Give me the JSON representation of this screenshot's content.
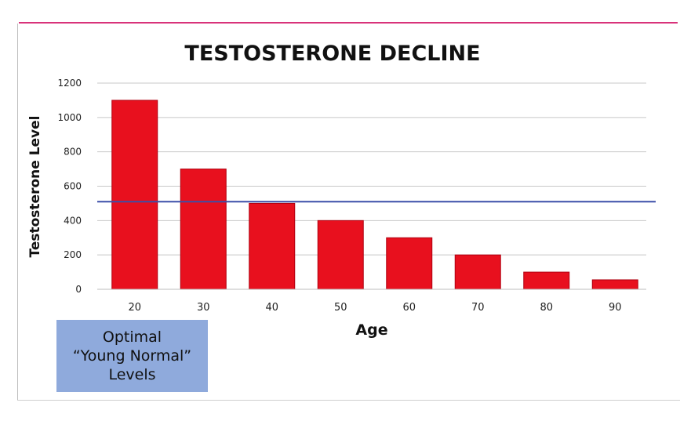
{
  "chart_data": {
    "type": "bar",
    "title": "TESTOSTERONE DECLINE",
    "xlabel": "Age",
    "ylabel": "Testosterone Level",
    "categories": [
      "20",
      "30",
      "40",
      "50",
      "60",
      "70",
      "80",
      "90"
    ],
    "values": [
      1100,
      700,
      500,
      400,
      300,
      200,
      100,
      55
    ],
    "ylim": [
      0,
      1200
    ],
    "yticks": [
      0,
      200,
      400,
      600,
      800,
      1000,
      1200
    ],
    "grid": true,
    "bar_color": "#e8101e",
    "bar_edge_color": "#b00010",
    "reference_line": {
      "value": 510,
      "color": "#3b4fa8"
    }
  },
  "callout": {
    "lines": [
      "Optimal",
      "“Young Normal”",
      "Levels"
    ],
    "color": "#8faadc"
  },
  "frame": {
    "accent_color": "#d8327a"
  }
}
